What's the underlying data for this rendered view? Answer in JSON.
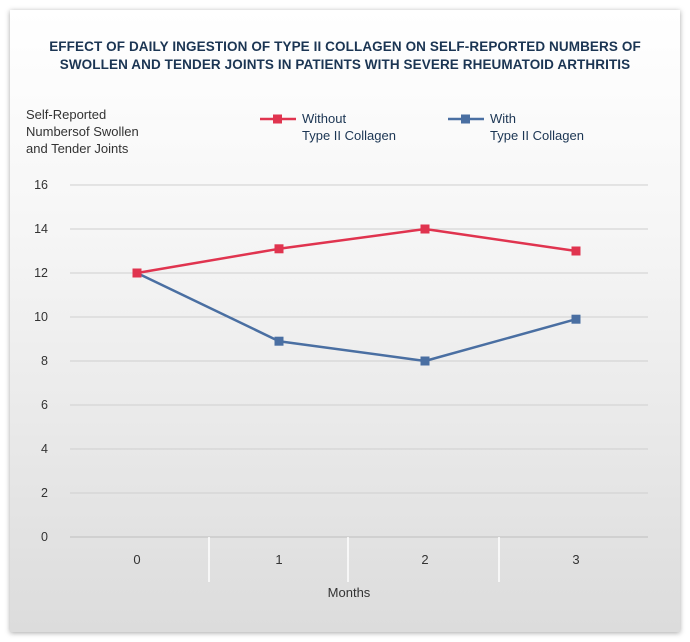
{
  "chart_data": {
    "type": "line",
    "title_lines": [
      "EFFECT OF DAILY INGESTION OF TYPE II COLLAGEN ON SELF-REPORTED NUMBERS OF",
      "SWOLLEN AND TENDER JOINTS IN PATIENTS WITH SEVERE RHEUMATOID ARTHRITIS"
    ],
    "ylabel_lines": [
      "Self-Reported",
      "Numbersof Swollen",
      "and Tender Joints"
    ],
    "xlabel": "Months",
    "categories": [
      "0",
      "1",
      "2",
      "3"
    ],
    "yticks": [
      "16",
      "14",
      "12",
      "10",
      "8",
      "6",
      "4",
      "2",
      "0"
    ],
    "ylim": [
      0,
      16
    ],
    "grid": true,
    "legend_position": "top",
    "series": [
      {
        "name_lines": [
          "Without",
          "Type II Collagen"
        ],
        "color": "#e0344f",
        "values": [
          12,
          13.1,
          14,
          13
        ]
      },
      {
        "name_lines": [
          "With",
          "Type II Collagen"
        ],
        "color": "#4a6fa2",
        "values": [
          12,
          8.9,
          8,
          9.9
        ]
      }
    ]
  }
}
